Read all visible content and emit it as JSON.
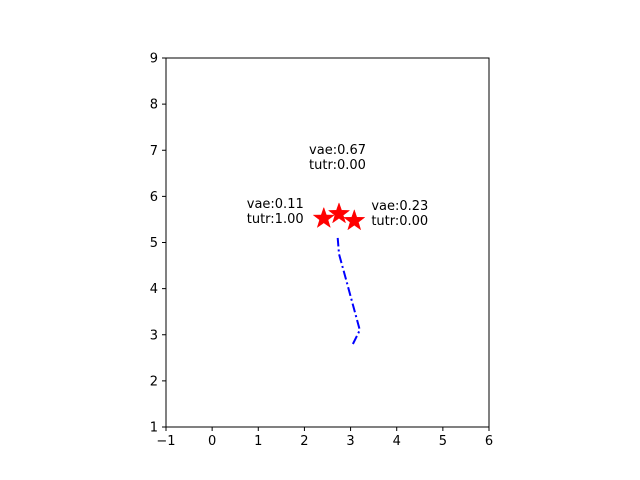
{
  "chart_data": {
    "type": "scatter",
    "xlim": [
      -1,
      6
    ],
    "ylim": [
      1,
      9
    ],
    "x_ticks": [
      "−1",
      "0",
      "1",
      "2",
      "3",
      "4",
      "5",
      "6"
    ],
    "y_ticks": [
      "1",
      "2",
      "3",
      "4",
      "5",
      "6",
      "7",
      "8",
      "9"
    ],
    "grid": false,
    "trajectory": {
      "style": "dash-dot",
      "color": "#0000ff",
      "points": [
        [
          3.05,
          2.8
        ],
        [
          3.2,
          3.1
        ],
        [
          2.9,
          4.2
        ],
        [
          2.75,
          4.75
        ],
        [
          2.72,
          5.1
        ]
      ]
    },
    "markers": [
      {
        "x": 2.42,
        "y": 5.52,
        "shape": "star",
        "color": "#ff0000"
      },
      {
        "x": 2.75,
        "y": 5.62,
        "shape": "star",
        "color": "#ff0000"
      },
      {
        "x": 3.08,
        "y": 5.47,
        "shape": "star",
        "color": "#ff0000"
      }
    ],
    "annotations": [
      {
        "line1": "vae:0.11",
        "line2": "tutr:1.00",
        "x": 0.75,
        "y": 5.75
      },
      {
        "line1": "vae:0.67",
        "line2": "tutr:0.00",
        "x": 2.1,
        "y": 6.92
      },
      {
        "line1": "vae:0.23",
        "line2": "tutr:0.00",
        "x": 3.45,
        "y": 5.7
      }
    ]
  }
}
